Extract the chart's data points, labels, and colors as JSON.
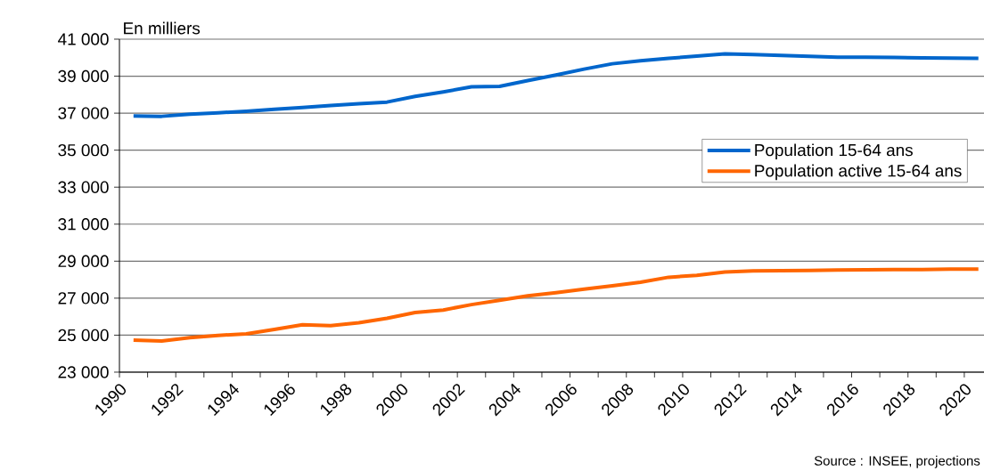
{
  "chart_data": {
    "type": "line",
    "ylabel": "En milliers",
    "x": [
      1990.5,
      1991.5,
      1992.5,
      1993.5,
      1994.5,
      1995.5,
      1996.5,
      1997.5,
      1998.5,
      1999.5,
      2000.5,
      2001.5,
      2002.5,
      2003.5,
      2004.5,
      2005.5,
      2006.5,
      2007.5,
      2008.5,
      2009.5,
      2010.5,
      2011.5,
      2012.5,
      2013.5,
      2014.5,
      2015.5,
      2016.5,
      2017.5,
      2018.5,
      2019.5,
      2020.5
    ],
    "series": [
      {
        "name": "Population 15-64 ans",
        "color": "#0066cc",
        "values": [
          36850,
          36830,
          36940,
          37020,
          37100,
          37210,
          37300,
          37410,
          37510,
          37600,
          37910,
          38150,
          38420,
          38450,
          38760,
          39060,
          39380,
          39670,
          39830,
          39960,
          40090,
          40200,
          40170,
          40120,
          40070,
          40020,
          40020,
          40010,
          39990,
          39980,
          39960
        ]
      },
      {
        "name": "Population active 15-64 ans",
        "color": "#ff6600",
        "values": [
          24730,
          24680,
          24860,
          24990,
          25070,
          25310,
          25560,
          25510,
          25670,
          25910,
          26220,
          26360,
          26650,
          26890,
          27130,
          27300,
          27490,
          27670,
          27860,
          28130,
          28230,
          28410,
          28470,
          28490,
          28500,
          28520,
          28540,
          28550,
          28550,
          28570,
          28570
        ]
      }
    ],
    "xlim": [
      1990,
      2020.7
    ],
    "ylim": [
      23000,
      41000
    ],
    "xticks": [
      1990,
      {
        "value": 1991,
        "label": null
      },
      1992,
      {
        "value": 1993,
        "label": null
      },
      1994,
      {
        "value": 1995,
        "label": null
      },
      1996,
      {
        "value": 1997,
        "label": null
      },
      1998,
      {
        "value": 1999,
        "label": null
      },
      2000,
      {
        "value": 2001,
        "label": null
      },
      2002,
      {
        "value": 2003,
        "label": null
      },
      2004,
      {
        "value": 2005,
        "label": null
      },
      2006,
      {
        "value": 2007,
        "label": null
      },
      2008,
      {
        "value": 2009,
        "label": null
      },
      2010,
      {
        "value": 2011,
        "label": null
      },
      2012,
      {
        "value": 2013,
        "label": null
      },
      2014,
      {
        "value": 2015,
        "label": null
      },
      2016,
      {
        "value": 2017,
        "label": null
      },
      2018,
      {
        "value": 2019,
        "label": null
      },
      2020
    ],
    "yticks": [
      {
        "value": 23000,
        "label": "23 000"
      },
      {
        "value": 25000,
        "label": "25 000"
      },
      {
        "value": 27000,
        "label": "27 000"
      },
      {
        "value": 29000,
        "label": "29 000"
      },
      {
        "value": 31000,
        "label": "31 000"
      },
      {
        "value": 33000,
        "label": "33 000"
      },
      {
        "value": 35000,
        "label": "35 000"
      },
      {
        "value": 37000,
        "label": "37 000"
      },
      {
        "value": 39000,
        "label": "39 000"
      },
      {
        "value": 41000,
        "label": "41 000"
      }
    ],
    "grid": "y",
    "legend": "top right",
    "marker": "none",
    "line_style": "solid",
    "annotations": [
      "Source : INSEE, projections"
    ]
  }
}
